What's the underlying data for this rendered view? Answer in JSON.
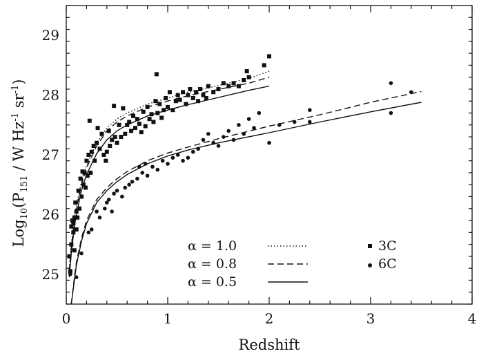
{
  "chart_data": {
    "type": "scatter",
    "xlabel": "Redshift",
    "ylabel": "Log10(P151 / W Hz-1 sr-1)",
    "ylabel_parts": {
      "log": "Log",
      "log_sub": "10",
      "open": "(P",
      "p_sub": "151",
      "mid": " / W Hz",
      "sup1": "-1",
      "sr": " sr",
      "sup2": "-1",
      "close": ")"
    },
    "xlim": [
      0,
      4
    ],
    "ylim": [
      24.5,
      29.5
    ],
    "xticks": [
      0,
      1,
      2,
      3,
      4
    ],
    "xtick_labels": [
      "0",
      "1",
      "2",
      "3",
      "4"
    ],
    "yticks": [
      25,
      26,
      27,
      28,
      29
    ],
    "ytick_labels": [
      "25",
      "26",
      "27",
      "28",
      "29"
    ],
    "grid": false,
    "series": [
      {
        "name": "3C",
        "marker": "square",
        "points": [
          [
            0.03,
            25.3
          ],
          [
            0.04,
            25.05
          ],
          [
            0.05,
            25.5
          ],
          [
            0.05,
            25.8
          ],
          [
            0.06,
            25.9
          ],
          [
            0.07,
            25.7
          ],
          [
            0.07,
            25.85
          ],
          [
            0.08,
            25.4
          ],
          [
            0.08,
            25.95
          ],
          [
            0.09,
            26.2
          ],
          [
            0.1,
            25.75
          ],
          [
            0.1,
            26.05
          ],
          [
            0.11,
            25.95
          ],
          [
            0.12,
            26.4
          ],
          [
            0.13,
            26.1
          ],
          [
            0.14,
            26.6
          ],
          [
            0.15,
            26.3
          ],
          [
            0.16,
            26.72
          ],
          [
            0.17,
            26.5
          ],
          [
            0.18,
            26.7
          ],
          [
            0.19,
            26.45
          ],
          [
            0.2,
            26.9
          ],
          [
            0.21,
            26.65
          ],
          [
            0.22,
            27.0
          ],
          [
            0.23,
            27.57
          ],
          [
            0.24,
            26.7
          ],
          [
            0.25,
            27.05
          ],
          [
            0.27,
            27.15
          ],
          [
            0.28,
            26.9
          ],
          [
            0.3,
            27.2
          ],
          [
            0.31,
            27.45
          ],
          [
            0.33,
            27.1
          ],
          [
            0.35,
            27.35
          ],
          [
            0.37,
            27.0
          ],
          [
            0.39,
            26.9
          ],
          [
            0.4,
            27.05
          ],
          [
            0.42,
            27.4
          ],
          [
            0.43,
            27.15
          ],
          [
            0.45,
            27.25
          ],
          [
            0.47,
            27.82
          ],
          [
            0.48,
            27.3
          ],
          [
            0.5,
            27.2
          ],
          [
            0.52,
            27.5
          ],
          [
            0.54,
            27.3
          ],
          [
            0.56,
            27.78
          ],
          [
            0.58,
            27.35
          ],
          [
            0.6,
            27.5
          ],
          [
            0.62,
            27.55
          ],
          [
            0.64,
            27.4
          ],
          [
            0.66,
            27.65
          ],
          [
            0.68,
            27.45
          ],
          [
            0.7,
            27.6
          ],
          [
            0.72,
            27.52
          ],
          [
            0.74,
            27.38
          ],
          [
            0.76,
            27.72
          ],
          [
            0.78,
            27.48
          ],
          [
            0.8,
            27.8
          ],
          [
            0.82,
            27.6
          ],
          [
            0.84,
            27.68
          ],
          [
            0.86,
            27.55
          ],
          [
            0.88,
            27.9
          ],
          [
            0.89,
            28.35
          ],
          [
            0.9,
            27.7
          ],
          [
            0.92,
            27.85
          ],
          [
            0.94,
            27.62
          ],
          [
            0.96,
            27.75
          ],
          [
            0.98,
            27.95
          ],
          [
            1.0,
            27.8
          ],
          [
            1.02,
            28.05
          ],
          [
            1.05,
            27.75
          ],
          [
            1.08,
            27.9
          ],
          [
            1.1,
            28.0
          ],
          [
            1.12,
            27.92
          ],
          [
            1.15,
            28.05
          ],
          [
            1.18,
            27.85
          ],
          [
            1.2,
            28.0
          ],
          [
            1.22,
            28.1
          ],
          [
            1.25,
            27.95
          ],
          [
            1.28,
            28.05
          ],
          [
            1.3,
            27.9
          ],
          [
            1.32,
            28.1
          ],
          [
            1.35,
            28.0
          ],
          [
            1.38,
            27.95
          ],
          [
            1.4,
            28.15
          ],
          [
            1.45,
            28.05
          ],
          [
            1.5,
            28.1
          ],
          [
            1.55,
            28.2
          ],
          [
            1.6,
            28.15
          ],
          [
            1.65,
            28.2
          ],
          [
            1.7,
            28.15
          ],
          [
            1.75,
            28.25
          ],
          [
            1.78,
            28.4
          ],
          [
            1.8,
            28.3
          ],
          [
            1.95,
            28.5
          ],
          [
            2.0,
            28.65
          ]
        ]
      },
      {
        "name": "6C",
        "marker": "circle",
        "points": [
          [
            0.04,
            25.0
          ],
          [
            0.1,
            24.95
          ],
          [
            0.15,
            25.35
          ],
          [
            0.22,
            25.7
          ],
          [
            0.25,
            25.75
          ],
          [
            0.3,
            26.05
          ],
          [
            0.33,
            25.95
          ],
          [
            0.38,
            26.1
          ],
          [
            0.4,
            26.2
          ],
          [
            0.42,
            26.25
          ],
          [
            0.45,
            26.05
          ],
          [
            0.47,
            26.35
          ],
          [
            0.5,
            26.4
          ],
          [
            0.55,
            26.3
          ],
          [
            0.58,
            26.45
          ],
          [
            0.62,
            26.5
          ],
          [
            0.65,
            26.55
          ],
          [
            0.7,
            26.6
          ],
          [
            0.72,
            26.8
          ],
          [
            0.75,
            26.7
          ],
          [
            0.78,
            26.85
          ],
          [
            0.8,
            26.65
          ],
          [
            0.85,
            26.8
          ],
          [
            0.9,
            26.75
          ],
          [
            0.95,
            26.9
          ],
          [
            1.0,
            26.85
          ],
          [
            1.05,
            26.95
          ],
          [
            1.1,
            27.0
          ],
          [
            1.15,
            26.9
          ],
          [
            1.2,
            26.95
          ],
          [
            1.25,
            27.05
          ],
          [
            1.3,
            27.1
          ],
          [
            1.35,
            27.25
          ],
          [
            1.4,
            27.35
          ],
          [
            1.45,
            27.2
          ],
          [
            1.5,
            27.15
          ],
          [
            1.55,
            27.3
          ],
          [
            1.6,
            27.4
          ],
          [
            1.65,
            27.25
          ],
          [
            1.7,
            27.5
          ],
          [
            1.75,
            27.35
          ],
          [
            1.8,
            27.6
          ],
          [
            1.85,
            27.45
          ],
          [
            1.9,
            27.7
          ],
          [
            2.0,
            27.2
          ],
          [
            2.1,
            27.5
          ],
          [
            2.25,
            27.55
          ],
          [
            2.4,
            27.55
          ],
          [
            2.4,
            27.75
          ],
          [
            3.2,
            28.2
          ],
          [
            3.2,
            27.7
          ],
          [
            3.4,
            28.05
          ]
        ]
      }
    ],
    "model_curves": [
      {
        "label": "α = 1.0",
        "style": "dotted",
        "sample": "3C",
        "x": [
          0.03,
          0.05,
          0.08,
          0.1,
          0.15,
          0.2,
          0.3,
          0.4,
          0.5,
          0.6,
          0.8,
          1.0,
          1.2,
          1.4,
          1.6,
          1.8,
          2.0
        ],
        "y": [
          25.1,
          25.5,
          25.95,
          26.15,
          26.55,
          26.82,
          27.2,
          27.45,
          27.6,
          27.7,
          27.85,
          27.95,
          28.05,
          28.12,
          28.2,
          28.28,
          28.4
        ]
      },
      {
        "label": "α = 0.8",
        "style": "dashed",
        "sample": "3C",
        "x": [
          0.03,
          0.05,
          0.08,
          0.1,
          0.15,
          0.2,
          0.3,
          0.4,
          0.5,
          0.6,
          0.8,
          1.0,
          1.2,
          1.4,
          1.6,
          1.8,
          2.0
        ],
        "y": [
          25.05,
          25.45,
          25.9,
          26.1,
          26.5,
          26.78,
          27.15,
          27.4,
          27.55,
          27.65,
          27.8,
          27.9,
          27.99,
          28.06,
          28.13,
          28.2,
          28.3
        ]
      },
      {
        "label": "α = 0.5",
        "style": "solid",
        "sample": "3C",
        "x": [
          0.03,
          0.05,
          0.08,
          0.1,
          0.15,
          0.2,
          0.3,
          0.4,
          0.5,
          0.6,
          0.8,
          1.0,
          1.2,
          1.4,
          1.6,
          1.8,
          2.0
        ],
        "y": [
          24.95,
          25.35,
          25.8,
          26.0,
          26.4,
          26.67,
          27.02,
          27.25,
          27.4,
          27.5,
          27.65,
          27.75,
          27.84,
          27.92,
          28.0,
          28.08,
          28.15
        ]
      },
      {
        "label": "α = 0.8",
        "style": "dashed",
        "sample": "6C",
        "x": [
          0.05,
          0.08,
          0.1,
          0.15,
          0.2,
          0.3,
          0.4,
          0.5,
          0.6,
          0.8,
          1.0,
          1.2,
          1.5,
          2.0,
          2.5,
          3.0,
          3.5
        ],
        "y": [
          24.5,
          24.95,
          25.2,
          25.6,
          25.9,
          26.25,
          26.45,
          26.6,
          26.72,
          26.9,
          27.03,
          27.13,
          27.27,
          27.48,
          27.67,
          27.88,
          28.06
        ]
      },
      {
        "label": "α = 0.5",
        "style": "solid",
        "sample": "6C",
        "x": [
          0.05,
          0.08,
          0.1,
          0.15,
          0.2,
          0.3,
          0.4,
          0.5,
          0.6,
          0.8,
          1.0,
          1.2,
          1.5,
          2.0,
          2.5,
          3.0,
          3.5
        ],
        "y": [
          24.5,
          24.9,
          25.15,
          25.55,
          25.85,
          26.2,
          26.4,
          26.55,
          26.67,
          26.85,
          26.98,
          27.08,
          27.2,
          27.37,
          27.55,
          27.72,
          27.88
        ]
      }
    ],
    "legend": {
      "position": "bottom-center",
      "lines": [
        {
          "text": "α = 1.0",
          "style": "dotted"
        },
        {
          "text": "α = 0.8",
          "style": "dashed"
        },
        {
          "text": "α = 0.5",
          "style": "solid"
        }
      ],
      "markers": [
        {
          "text": "3C",
          "marker": "square"
        },
        {
          "text": "6C",
          "marker": "circle"
        }
      ]
    }
  }
}
